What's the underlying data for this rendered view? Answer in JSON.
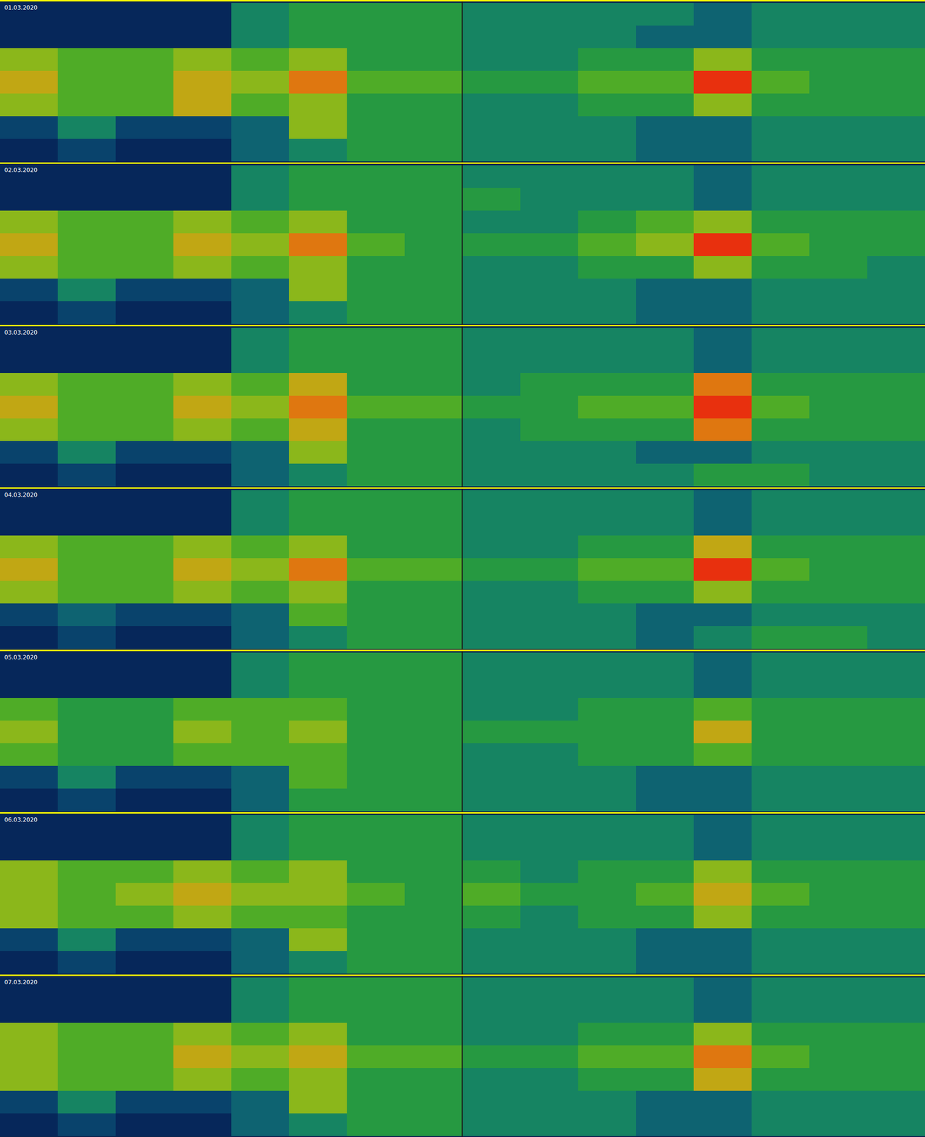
{
  "chart_data": [
    {
      "type": "heatmap",
      "title": "01.03.2020",
      "tick_labels": false,
      "cells": [
        [
          1,
          1,
          1,
          1,
          4,
          5,
          5,
          5,
          4,
          4,
          4,
          4,
          3,
          4,
          4,
          4
        ],
        [
          1,
          1,
          1,
          1,
          4,
          5,
          5,
          5,
          4,
          4,
          4,
          3,
          3,
          4,
          4,
          4
        ],
        [
          7,
          6,
          6,
          7,
          6,
          7,
          5,
          5,
          4,
          4,
          5,
          5,
          7,
          5,
          5,
          5
        ],
        [
          8,
          6,
          6,
          8,
          7,
          9,
          6,
          6,
          5,
          5,
          6,
          6,
          10,
          6,
          5,
          5
        ],
        [
          7,
          6,
          6,
          8,
          6,
          7,
          5,
          5,
          4,
          4,
          5,
          5,
          7,
          5,
          5,
          5
        ],
        [
          2,
          4,
          2,
          2,
          3,
          7,
          5,
          5,
          4,
          4,
          4,
          3,
          3,
          4,
          4,
          4
        ],
        [
          1,
          2,
          1,
          1,
          3,
          4,
          5,
          5,
          4,
          4,
          4,
          3,
          3,
          4,
          4,
          4
        ]
      ]
    },
    {
      "type": "heatmap",
      "title": "02.03.2020",
      "tick_labels": false,
      "cells": [
        [
          1,
          1,
          1,
          1,
          4,
          5,
          5,
          5,
          4,
          4,
          4,
          4,
          3,
          4,
          4,
          4
        ],
        [
          1,
          1,
          1,
          1,
          4,
          5,
          5,
          5,
          5,
          4,
          4,
          4,
          3,
          4,
          4,
          4
        ],
        [
          7,
          6,
          6,
          7,
          6,
          7,
          5,
          5,
          4,
          4,
          5,
          6,
          7,
          5,
          5,
          5
        ],
        [
          8,
          6,
          6,
          8,
          7,
          9,
          6,
          5,
          5,
          5,
          6,
          7,
          10,
          6,
          5,
          5
        ],
        [
          7,
          6,
          6,
          7,
          6,
          7,
          5,
          5,
          4,
          4,
          5,
          5,
          7,
          5,
          5,
          4
        ],
        [
          2,
          4,
          2,
          2,
          3,
          7,
          5,
          5,
          4,
          4,
          4,
          3,
          3,
          4,
          4,
          4
        ],
        [
          1,
          2,
          1,
          1,
          3,
          4,
          5,
          5,
          4,
          4,
          4,
          3,
          3,
          4,
          4,
          4
        ]
      ]
    },
    {
      "type": "heatmap",
      "title": "03.03.2020",
      "tick_labels": false,
      "cells": [
        [
          1,
          1,
          1,
          1,
          4,
          5,
          5,
          5,
          4,
          4,
          4,
          4,
          3,
          4,
          4,
          4
        ],
        [
          1,
          1,
          1,
          1,
          4,
          5,
          5,
          5,
          4,
          4,
          4,
          4,
          3,
          4,
          4,
          4
        ],
        [
          7,
          6,
          6,
          7,
          6,
          8,
          5,
          5,
          4,
          5,
          5,
          5,
          9,
          5,
          5,
          5
        ],
        [
          8,
          6,
          6,
          8,
          7,
          9,
          6,
          6,
          5,
          5,
          6,
          6,
          10,
          6,
          5,
          5
        ],
        [
          7,
          6,
          6,
          7,
          6,
          8,
          5,
          5,
          4,
          5,
          5,
          5,
          9,
          5,
          5,
          5
        ],
        [
          2,
          4,
          2,
          2,
          3,
          7,
          5,
          5,
          4,
          4,
          4,
          3,
          3,
          4,
          4,
          4
        ],
        [
          1,
          2,
          1,
          1,
          3,
          4,
          5,
          5,
          4,
          4,
          4,
          4,
          5,
          5,
          4,
          4
        ]
      ]
    },
    {
      "type": "heatmap",
      "title": "04.03.2020",
      "tick_labels": false,
      "cells": [
        [
          1,
          1,
          1,
          1,
          4,
          5,
          5,
          5,
          4,
          4,
          4,
          4,
          3,
          4,
          4,
          4
        ],
        [
          1,
          1,
          1,
          1,
          4,
          5,
          5,
          5,
          4,
          4,
          4,
          4,
          3,
          4,
          4,
          4
        ],
        [
          7,
          6,
          6,
          7,
          6,
          7,
          5,
          5,
          4,
          4,
          5,
          5,
          8,
          5,
          5,
          5
        ],
        [
          8,
          6,
          6,
          8,
          7,
          9,
          6,
          6,
          5,
          5,
          6,
          6,
          10,
          6,
          5,
          5
        ],
        [
          7,
          6,
          6,
          7,
          6,
          7,
          5,
          5,
          4,
          4,
          5,
          5,
          7,
          5,
          5,
          5
        ],
        [
          2,
          3,
          2,
          2,
          3,
          6,
          5,
          5,
          4,
          4,
          4,
          3,
          3,
          4,
          4,
          4
        ],
        [
          1,
          2,
          1,
          1,
          3,
          4,
          5,
          5,
          4,
          4,
          4,
          3,
          4,
          5,
          5,
          4
        ]
      ]
    },
    {
      "type": "heatmap",
      "title": "05.03.2020",
      "tick_labels": false,
      "cells": [
        [
          1,
          1,
          1,
          1,
          4,
          5,
          5,
          5,
          4,
          4,
          4,
          4,
          3,
          4,
          4,
          4
        ],
        [
          1,
          1,
          1,
          1,
          4,
          5,
          5,
          5,
          4,
          4,
          4,
          4,
          3,
          4,
          4,
          4
        ],
        [
          6,
          5,
          5,
          6,
          6,
          6,
          5,
          5,
          4,
          4,
          5,
          5,
          6,
          5,
          5,
          5
        ],
        [
          7,
          5,
          5,
          7,
          6,
          7,
          5,
          5,
          5,
          5,
          5,
          5,
          8,
          5,
          5,
          5
        ],
        [
          6,
          5,
          5,
          6,
          6,
          6,
          5,
          5,
          4,
          4,
          5,
          5,
          6,
          5,
          5,
          5
        ],
        [
          2,
          4,
          2,
          2,
          3,
          6,
          5,
          5,
          4,
          4,
          4,
          3,
          3,
          4,
          4,
          4
        ],
        [
          1,
          2,
          1,
          1,
          3,
          5,
          5,
          5,
          4,
          4,
          4,
          3,
          3,
          4,
          4,
          4
        ]
      ]
    },
    {
      "type": "heatmap",
      "title": "06.03.2020",
      "tick_labels": false,
      "cells": [
        [
          1,
          1,
          1,
          1,
          4,
          5,
          5,
          5,
          4,
          4,
          4,
          4,
          3,
          4,
          4,
          4
        ],
        [
          1,
          1,
          1,
          1,
          4,
          5,
          5,
          5,
          4,
          4,
          4,
          4,
          3,
          4,
          4,
          4
        ],
        [
          7,
          6,
          6,
          7,
          6,
          7,
          5,
          5,
          5,
          4,
          5,
          5,
          7,
          5,
          5,
          5
        ],
        [
          7,
          6,
          7,
          8,
          7,
          7,
          6,
          5,
          6,
          5,
          5,
          6,
          8,
          6,
          5,
          5
        ],
        [
          7,
          6,
          6,
          7,
          6,
          6,
          5,
          5,
          5,
          4,
          5,
          5,
          7,
          5,
          5,
          5
        ],
        [
          2,
          4,
          2,
          2,
          3,
          7,
          5,
          5,
          4,
          4,
          4,
          3,
          3,
          4,
          4,
          4
        ],
        [
          1,
          2,
          1,
          1,
          3,
          4,
          5,
          5,
          4,
          4,
          4,
          3,
          3,
          4,
          4,
          4
        ]
      ]
    },
    {
      "type": "heatmap",
      "title": "07.03.2020",
      "tick_labels": false,
      "cells": [
        [
          1,
          1,
          1,
          1,
          4,
          5,
          5,
          5,
          4,
          4,
          4,
          4,
          3,
          4,
          4,
          4
        ],
        [
          1,
          1,
          1,
          1,
          4,
          5,
          5,
          5,
          4,
          4,
          4,
          4,
          3,
          4,
          4,
          4
        ],
        [
          7,
          6,
          6,
          7,
          6,
          7,
          5,
          5,
          4,
          4,
          5,
          5,
          7,
          5,
          5,
          5
        ],
        [
          7,
          6,
          6,
          8,
          7,
          8,
          6,
          6,
          5,
          5,
          6,
          6,
          9,
          6,
          5,
          5
        ],
        [
          7,
          6,
          6,
          7,
          6,
          7,
          5,
          5,
          4,
          4,
          5,
          5,
          8,
          5,
          5,
          5
        ],
        [
          2,
          4,
          2,
          2,
          3,
          7,
          5,
          5,
          4,
          4,
          4,
          3,
          3,
          4,
          4,
          4
        ],
        [
          1,
          2,
          1,
          1,
          3,
          4,
          5,
          5,
          4,
          4,
          4,
          3,
          3,
          4,
          4,
          4
        ]
      ]
    }
  ]
}
